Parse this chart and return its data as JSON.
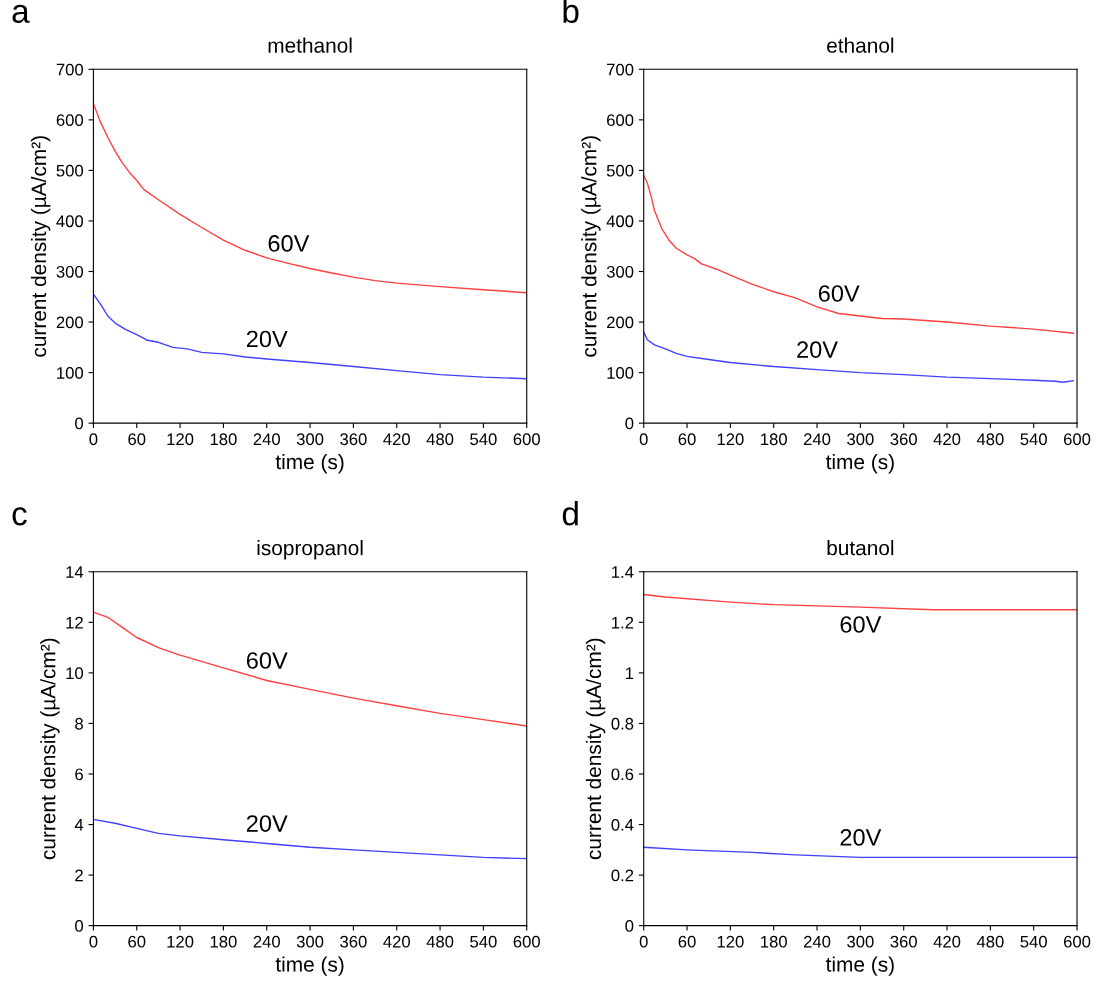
{
  "chart_data": [
    {
      "type": "line",
      "title": "methanol",
      "xlabel": "time (s)",
      "ylabel": "current density (µA/cm²)",
      "annotations": [
        "a"
      ],
      "xlim": [
        0,
        600
      ],
      "xticks": [
        0,
        60,
        120,
        180,
        240,
        300,
        360,
        420,
        480,
        540,
        600
      ],
      "ylim": [
        0,
        700
      ],
      "yticks": [
        0,
        100,
        200,
        300,
        400,
        500,
        600,
        700
      ],
      "grid": false,
      "series": [
        {
          "name": "60V",
          "color": "#ff4040",
          "x": [
            0,
            10,
            20,
            30,
            40,
            50,
            60,
            70,
            90,
            120,
            150,
            180,
            210,
            240,
            270,
            300,
            330,
            360,
            390,
            420,
            480,
            540,
            600
          ],
          "values": [
            632,
            595,
            565,
            538,
            515,
            496,
            480,
            462,
            442,
            413,
            387,
            362,
            342,
            327,
            316,
            306,
            297,
            289,
            282,
            277,
            270,
            264,
            258
          ]
        },
        {
          "name": "20V",
          "color": "#4040ff",
          "x": [
            0,
            10,
            20,
            30,
            45,
            60,
            75,
            90,
            110,
            130,
            150,
            180,
            210,
            240,
            300,
            360,
            420,
            480,
            540,
            600
          ],
          "values": [
            255,
            235,
            212,
            198,
            185,
            175,
            164,
            160,
            150,
            147,
            140,
            137,
            131,
            127,
            120,
            112,
            104,
            96,
            91,
            88
          ]
        }
      ]
    },
    {
      "type": "line",
      "title": "ethanol",
      "xlabel": "time (s)",
      "ylabel": "current density (µA/cm²)",
      "annotations": [
        "b"
      ],
      "xlim": [
        0,
        600
      ],
      "xticks": [
        0,
        60,
        120,
        180,
        240,
        300,
        360,
        420,
        480,
        540,
        600
      ],
      "ylim": [
        0,
        700
      ],
      "yticks": [
        0,
        100,
        200,
        300,
        400,
        500,
        600,
        700
      ],
      "grid": false,
      "series": [
        {
          "name": "60V",
          "color": "#ff4040",
          "x": [
            0,
            5,
            10,
            15,
            25,
            35,
            45,
            60,
            70,
            80,
            100,
            120,
            150,
            180,
            210,
            240,
            270,
            300,
            330,
            360,
            420,
            480,
            540,
            595
          ],
          "values": [
            490,
            475,
            450,
            420,
            385,
            362,
            346,
            333,
            326,
            315,
            305,
            293,
            275,
            260,
            248,
            230,
            217,
            212,
            207,
            206,
            200,
            192,
            186,
            178
          ]
        },
        {
          "name": "20V",
          "color": "#4040ff",
          "x": [
            0,
            5,
            15,
            30,
            45,
            60,
            90,
            120,
            180,
            240,
            300,
            360,
            420,
            480,
            540,
            570,
            580,
            595
          ],
          "values": [
            180,
            165,
            155,
            147,
            138,
            132,
            126,
            120,
            112,
            106,
            100,
            96,
            91,
            88,
            85,
            83,
            81,
            84
          ]
        }
      ]
    },
    {
      "type": "line",
      "title": "isopropanol",
      "xlabel": "time (s)",
      "ylabel": "current density (µA/cm²)",
      "annotations": [
        "c"
      ],
      "xlim": [
        0,
        600
      ],
      "xticks": [
        0,
        60,
        120,
        180,
        240,
        300,
        360,
        420,
        480,
        540,
        600
      ],
      "ylim": [
        0,
        14
      ],
      "yticks": [
        0,
        2,
        4,
        6,
        8,
        10,
        12,
        14
      ],
      "grid": false,
      "series": [
        {
          "name": "60V",
          "color": "#ff4040",
          "x": [
            0,
            20,
            40,
            60,
            90,
            120,
            180,
            240,
            300,
            360,
            420,
            480,
            540,
            600
          ],
          "values": [
            12.4,
            12.2,
            11.8,
            11.4,
            11.0,
            10.7,
            10.2,
            9.7,
            9.35,
            9.0,
            8.7,
            8.4,
            8.15,
            7.9
          ]
        },
        {
          "name": "20V",
          "color": "#4040ff",
          "x": [
            0,
            30,
            60,
            90,
            120,
            180,
            240,
            300,
            360,
            420,
            480,
            540,
            600
          ],
          "values": [
            4.2,
            4.05,
            3.85,
            3.65,
            3.55,
            3.4,
            3.25,
            3.1,
            3.0,
            2.9,
            2.8,
            2.7,
            2.65
          ]
        }
      ]
    },
    {
      "type": "line",
      "title": "butanol",
      "xlabel": "time (s)",
      "ylabel": "current density (µA/cm²)",
      "annotations": [
        "d"
      ],
      "xlim": [
        0,
        600
      ],
      "xticks": [
        0,
        60,
        120,
        180,
        240,
        300,
        360,
        420,
        480,
        540,
        600
      ],
      "ylim": [
        0,
        1.4
      ],
      "yticks": [
        0,
        0.2,
        0.4,
        0.6,
        0.8,
        1,
        1.2,
        1.4
      ],
      "grid": false,
      "series": [
        {
          "name": "60V",
          "color": "#ff4040",
          "x": [
            0,
            30,
            120,
            180,
            300,
            400,
            600
          ],
          "values": [
            1.31,
            1.3,
            1.28,
            1.27,
            1.26,
            1.25,
            1.25
          ]
        },
        {
          "name": "20V",
          "color": "#4040ff",
          "x": [
            0,
            60,
            150,
            210,
            300,
            600
          ],
          "values": [
            0.31,
            0.3,
            0.29,
            0.28,
            0.27,
            0.27
          ]
        }
      ]
    }
  ]
}
